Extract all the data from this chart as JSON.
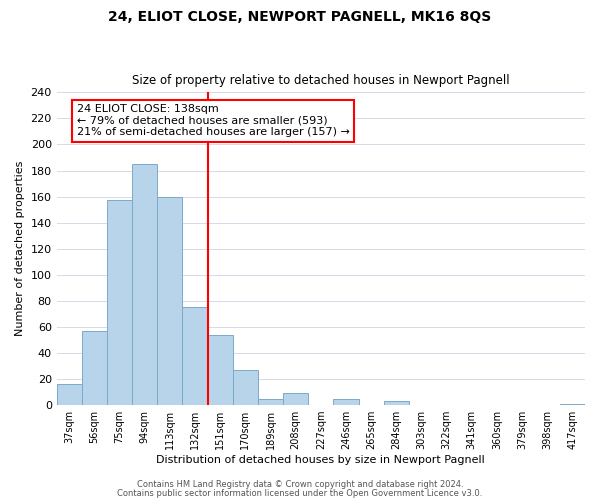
{
  "title": "24, ELIOT CLOSE, NEWPORT PAGNELL, MK16 8QS",
  "subtitle": "Size of property relative to detached houses in Newport Pagnell",
  "xlabel": "Distribution of detached houses by size in Newport Pagnell",
  "ylabel": "Number of detached properties",
  "bar_labels": [
    "37sqm",
    "56sqm",
    "75sqm",
    "94sqm",
    "113sqm",
    "132sqm",
    "151sqm",
    "170sqm",
    "189sqm",
    "208sqm",
    "227sqm",
    "246sqm",
    "265sqm",
    "284sqm",
    "303sqm",
    "322sqm",
    "341sqm",
    "360sqm",
    "379sqm",
    "398sqm",
    "417sqm"
  ],
  "bar_values": [
    16,
    57,
    157,
    185,
    160,
    75,
    54,
    27,
    5,
    9,
    0,
    5,
    0,
    3,
    0,
    0,
    0,
    0,
    0,
    0,
    1
  ],
  "bar_color": "#b8d4ea",
  "bar_edge_color": "#7aaac8",
  "vline_x": 5.5,
  "vline_color": "red",
  "annotation_title": "24 ELIOT CLOSE: 138sqm",
  "annotation_line1": "← 79% of detached houses are smaller (593)",
  "annotation_line2": "21% of semi-detached houses are larger (157) →",
  "annotation_box_color": "white",
  "annotation_box_edge_color": "red",
  "ylim": [
    0,
    240
  ],
  "yticks": [
    0,
    20,
    40,
    60,
    80,
    100,
    120,
    140,
    160,
    180,
    200,
    220,
    240
  ],
  "footer1": "Contains HM Land Registry data © Crown copyright and database right 2024.",
  "footer2": "Contains public sector information licensed under the Open Government Licence v3.0.",
  "grid_color": "#d8d8e8",
  "title_fontsize": 10,
  "subtitle_fontsize": 8.5,
  "xlabel_fontsize": 8,
  "ylabel_fontsize": 8,
  "xtick_fontsize": 7,
  "ytick_fontsize": 8,
  "annotation_fontsize": 8,
  "footer_fontsize": 6
}
